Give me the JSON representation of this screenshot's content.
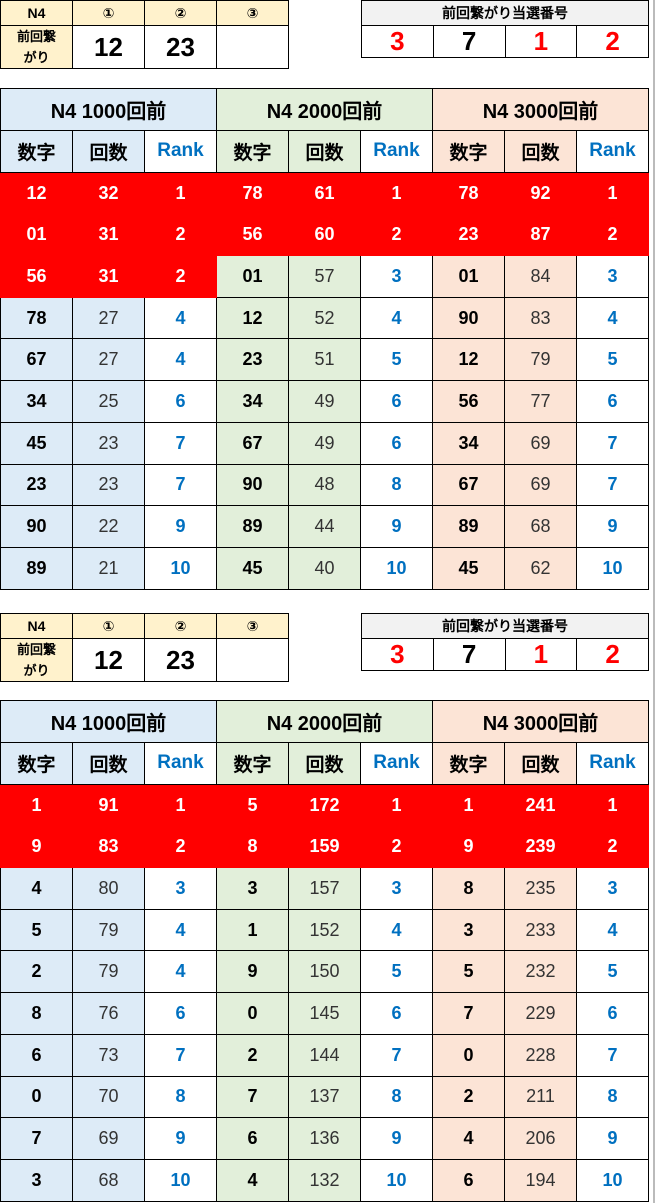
{
  "colors": {
    "group_1000": "#DDEBF7",
    "group_2000": "#E2EFDA",
    "group_3000": "#FCE4D6",
    "highlight": "#FF0000",
    "rank_text": "#0070C0"
  },
  "sections": [
    {
      "prev": {
        "label_n4": "N4",
        "col1": "①",
        "col2": "②",
        "col3": "③",
        "row_label": "前回繋がり",
        "v1": "12",
        "v2": "23",
        "v3": ""
      },
      "win": {
        "title": "前回繋がり当選番号",
        "digits": [
          "3",
          "7",
          "1",
          "2"
        ],
        "red": [
          true,
          false,
          true,
          true
        ]
      },
      "groups": [
        {
          "title": "N4 1000回前",
          "h_num": "数字",
          "h_cnt": "回数",
          "h_rank": "Rank",
          "highlight_rows": 3,
          "rows": [
            [
              "12",
              "32",
              "1"
            ],
            [
              "01",
              "31",
              "2"
            ],
            [
              "56",
              "31",
              "2"
            ],
            [
              "78",
              "27",
              "4"
            ],
            [
              "67",
              "27",
              "4"
            ],
            [
              "34",
              "25",
              "6"
            ],
            [
              "45",
              "23",
              "7"
            ],
            [
              "23",
              "23",
              "7"
            ],
            [
              "90",
              "22",
              "9"
            ],
            [
              "89",
              "21",
              "10"
            ]
          ]
        },
        {
          "title": "N4 2000回前",
          "h_num": "数字",
          "h_cnt": "回数",
          "h_rank": "Rank",
          "highlight_rows": 2,
          "rows": [
            [
              "78",
              "61",
              "1"
            ],
            [
              "56",
              "60",
              "2"
            ],
            [
              "01",
              "57",
              "3"
            ],
            [
              "12",
              "52",
              "4"
            ],
            [
              "23",
              "51",
              "5"
            ],
            [
              "34",
              "49",
              "6"
            ],
            [
              "67",
              "49",
              "6"
            ],
            [
              "90",
              "48",
              "8"
            ],
            [
              "89",
              "44",
              "9"
            ],
            [
              "45",
              "40",
              "10"
            ]
          ]
        },
        {
          "title": "N4 3000回前",
          "h_num": "数字",
          "h_cnt": "回数",
          "h_rank": "Rank",
          "highlight_rows": 2,
          "rows": [
            [
              "78",
              "92",
              "1"
            ],
            [
              "23",
              "87",
              "2"
            ],
            [
              "01",
              "84",
              "3"
            ],
            [
              "90",
              "83",
              "4"
            ],
            [
              "12",
              "79",
              "5"
            ],
            [
              "56",
              "77",
              "6"
            ],
            [
              "34",
              "69",
              "7"
            ],
            [
              "67",
              "69",
              "7"
            ],
            [
              "89",
              "68",
              "9"
            ],
            [
              "45",
              "62",
              "10"
            ]
          ]
        }
      ]
    },
    {
      "prev": {
        "label_n4": "N4",
        "col1": "①",
        "col2": "②",
        "col3": "③",
        "row_label": "前回繋がり",
        "v1": "12",
        "v2": "23",
        "v3": ""
      },
      "win": {
        "title": "前回繋がり当選番号",
        "digits": [
          "3",
          "7",
          "1",
          "2"
        ],
        "red": [
          true,
          false,
          true,
          true
        ]
      },
      "groups": [
        {
          "title": "N4 1000回前",
          "h_num": "数字",
          "h_cnt": "回数",
          "h_rank": "Rank",
          "highlight_rows": 2,
          "rows": [
            [
              "1",
              "91",
              "1"
            ],
            [
              "9",
              "83",
              "2"
            ],
            [
              "4",
              "80",
              "3"
            ],
            [
              "5",
              "79",
              "4"
            ],
            [
              "2",
              "79",
              "4"
            ],
            [
              "8",
              "76",
              "6"
            ],
            [
              "6",
              "73",
              "7"
            ],
            [
              "0",
              "70",
              "8"
            ],
            [
              "7",
              "69",
              "9"
            ],
            [
              "3",
              "68",
              "10"
            ]
          ]
        },
        {
          "title": "N4 2000回前",
          "h_num": "数字",
          "h_cnt": "回数",
          "h_rank": "Rank",
          "highlight_rows": 2,
          "rows": [
            [
              "5",
              "172",
              "1"
            ],
            [
              "8",
              "159",
              "2"
            ],
            [
              "3",
              "157",
              "3"
            ],
            [
              "1",
              "152",
              "4"
            ],
            [
              "9",
              "150",
              "5"
            ],
            [
              "0",
              "145",
              "6"
            ],
            [
              "2",
              "144",
              "7"
            ],
            [
              "7",
              "137",
              "8"
            ],
            [
              "6",
              "136",
              "9"
            ],
            [
              "4",
              "132",
              "10"
            ]
          ]
        },
        {
          "title": "N4 3000回前",
          "h_num": "数字",
          "h_cnt": "回数",
          "h_rank": "Rank",
          "highlight_rows": 2,
          "rows": [
            [
              "1",
              "241",
              "1"
            ],
            [
              "9",
              "239",
              "2"
            ],
            [
              "8",
              "235",
              "3"
            ],
            [
              "3",
              "233",
              "4"
            ],
            [
              "5",
              "232",
              "5"
            ],
            [
              "7",
              "229",
              "6"
            ],
            [
              "0",
              "228",
              "7"
            ],
            [
              "2",
              "211",
              "8"
            ],
            [
              "4",
              "206",
              "9"
            ],
            [
              "6",
              "194",
              "10"
            ]
          ]
        }
      ]
    }
  ]
}
